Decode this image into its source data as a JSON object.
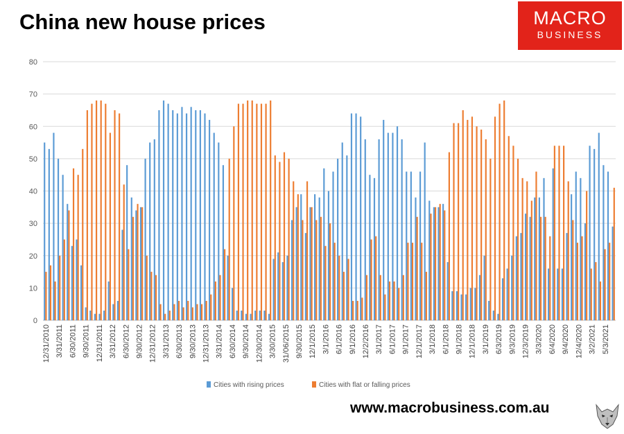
{
  "title": "China new house prices",
  "logo": {
    "line1": "MACRO",
    "line2": "BUSINESS"
  },
  "footer_url": "www.macrobusiness.com.au",
  "colors": {
    "rising": "#5b9bd5",
    "falling": "#ed7d31",
    "logo_bg": "#e2231a"
  },
  "chart_data": {
    "type": "bar",
    "ylim": [
      0,
      80
    ],
    "yticks": [
      0,
      10,
      20,
      30,
      40,
      50,
      60,
      70,
      80
    ],
    "xtick_labels": [
      "12/31/2010",
      "3/31/2011",
      "6/30/2011",
      "9/30/2011",
      "12/31/2011",
      "3/31/2012",
      "6/30/2012",
      "9/30/2012",
      "12/31/2012",
      "3/31/2013",
      "6/30/2013",
      "9/30/2013",
      "12/31/2013",
      "3/31/2014",
      "6/30/2014",
      "9/30/2014",
      "12/30/2014",
      "3/30/2015",
      "31/06/2015",
      "9/30/2015",
      "12/1/2015",
      "3/1/2016",
      "6/1/2016",
      "9/1/2016",
      "12/2/2016",
      "3/1/2017",
      "6/1/2017",
      "9/1/2017",
      "12/1/2017",
      "3/1/2018",
      "6/1/2018",
      "9/1/2018",
      "12/1/2018",
      "3/1/2019",
      "6/3/2019",
      "9/3/2019",
      "12/3/2019",
      "3/3/2020",
      "6/4/2020",
      "9/4/2020",
      "12/4/2020",
      "3/2/2021",
      "5/3/2021"
    ],
    "legend": {
      "position": "bottom",
      "entries": [
        "Cities with rising prices",
        "Cities with flat or falling prices"
      ]
    },
    "series": [
      {
        "name": "Cities with rising prices",
        "values": [
          55,
          53,
          58,
          50,
          45,
          36,
          23,
          25,
          17,
          4,
          3,
          2,
          2,
          3,
          12,
          5,
          6,
          28,
          48,
          38,
          34,
          35,
          50,
          55,
          56,
          65,
          68,
          67,
          65,
          64,
          66,
          64,
          66,
          65,
          65,
          64,
          62,
          58,
          55,
          48,
          20,
          10,
          3,
          3,
          2,
          2,
          3,
          3,
          3,
          2,
          19,
          21,
          18,
          20,
          31,
          35,
          39,
          27,
          35,
          39,
          38,
          47,
          40,
          46,
          50,
          55,
          51,
          64,
          64,
          63,
          56,
          45,
          44,
          56,
          62,
          58,
          58,
          60,
          56,
          46,
          46,
          38,
          46,
          55,
          37,
          35,
          35,
          36,
          18,
          9,
          9,
          8,
          8,
          10,
          10,
          14,
          20,
          6,
          3,
          2,
          13,
          16,
          20,
          26,
          27,
          33,
          32,
          38,
          38,
          44,
          16,
          47,
          16,
          16,
          27,
          39,
          46,
          44,
          30,
          54,
          53,
          58,
          48,
          46,
          29
        ]
      },
      {
        "name": "Cities with flat or falling prices",
        "values": [
          15,
          17,
          12,
          20,
          25,
          34,
          47,
          45,
          53,
          65,
          67,
          68,
          68,
          67,
          58,
          65,
          64,
          42,
          22,
          32,
          36,
          35,
          20,
          15,
          14,
          5,
          2,
          3,
          5,
          6,
          4,
          6,
          4,
          5,
          5,
          6,
          8,
          12,
          14,
          22,
          50,
          60,
          67,
          67,
          68,
          68,
          67,
          67,
          67,
          68,
          51,
          49,
          52,
          50,
          43,
          39,
          31,
          43,
          35,
          31,
          32,
          23,
          30,
          24,
          20,
          15,
          19,
          6,
          6,
          7,
          14,
          25,
          26,
          14,
          8,
          12,
          12,
          10,
          14,
          24,
          24,
          32,
          24,
          15,
          33,
          35,
          36,
          34,
          52,
          61,
          61,
          65,
          62,
          63,
          60,
          59,
          56,
          50,
          63,
          67,
          68,
          57,
          54,
          50,
          44,
          43,
          37,
          46,
          32,
          32,
          26,
          54,
          54,
          54,
          43,
          31,
          24,
          26,
          40,
          16,
          18,
          12,
          22,
          24,
          41
        ]
      }
    ]
  }
}
